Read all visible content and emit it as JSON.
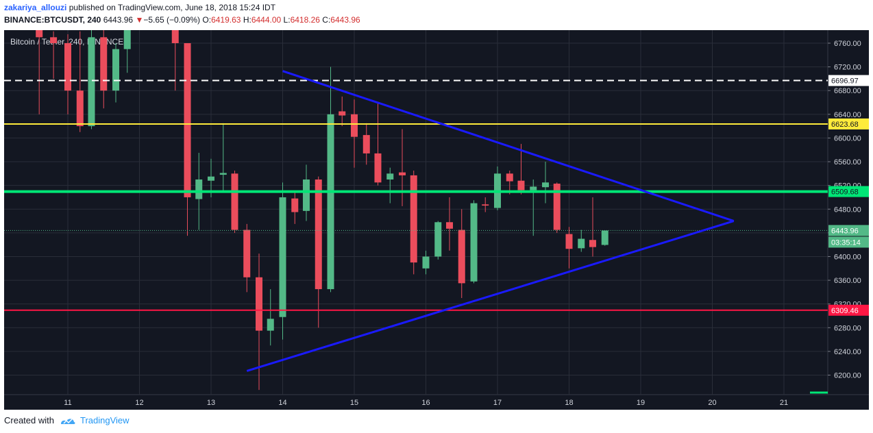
{
  "header": {
    "username": "zakariya_allouzi",
    "published_text": "published on TradingView.com, June 18, 2018 15:24 IDT",
    "symbol_label": "BINANCE:BTCUSDT, 240",
    "last_price": "6443.96",
    "change_arrow": "▼",
    "change": "−5.65 (−0.09%)",
    "open_label": "O:",
    "open": "6419.63",
    "high_label": "H:",
    "high": "6444.00",
    "low_label": "L:",
    "low": "6418.26",
    "close_label": "C:",
    "close": "6443.96"
  },
  "footer": {
    "created_with": "Created with",
    "brand": "TradingView"
  },
  "chart_data": {
    "type": "candlestick",
    "title": "Bitcoin / Tether, 240, BINANCE",
    "x_tick_labels": [
      "11",
      "12",
      "13",
      "14",
      "15",
      "16",
      "17",
      "18",
      "19",
      "20",
      "21"
    ],
    "y_tick_labels": [
      "6760.00",
      "6720.00",
      "6680.00",
      "6640.00",
      "6600.00",
      "6560.00",
      "6520.00",
      "6480.00",
      "6440.00",
      "6400.00",
      "6360.00",
      "6320.00",
      "6280.00",
      "6240.00",
      "6200.00"
    ],
    "x_range_days": [
      10.0,
      21.8
    ],
    "ylim": [
      6170,
      6780
    ],
    "grid": true,
    "candles": [
      {
        "t": 10.6,
        "o": 6790,
        "h": 6800,
        "l": 6640,
        "c": 6770
      },
      {
        "t": 10.8,
        "o": 6770,
        "h": 6780,
        "l": 6700,
        "c": 6760
      },
      {
        "t": 11.0,
        "o": 6760,
        "h": 6775,
        "l": 6640,
        "c": 6680
      },
      {
        "t": 11.17,
        "o": 6680,
        "h": 6780,
        "l": 6610,
        "c": 6620
      },
      {
        "t": 11.33,
        "o": 6620,
        "h": 6790,
        "l": 6615,
        "c": 6770
      },
      {
        "t": 11.5,
        "o": 6770,
        "h": 6790,
        "l": 6650,
        "c": 6680
      },
      {
        "t": 11.67,
        "o": 6680,
        "h": 6760,
        "l": 6660,
        "c": 6750
      },
      {
        "t": 11.83,
        "o": 6750,
        "h": 6790,
        "l": 6710,
        "c": 6785
      },
      {
        "t": 12.5,
        "o": 6790,
        "h": 6800,
        "l": 6680,
        "c": 6760
      },
      {
        "t": 12.67,
        "o": 6760,
        "h": 6760,
        "l": 6435,
        "c": 6500
      },
      {
        "t": 12.83,
        "o": 6497,
        "h": 6575,
        "l": 6445,
        "c": 6530
      },
      {
        "t": 13.0,
        "o": 6528,
        "h": 6565,
        "l": 6500,
        "c": 6535
      },
      {
        "t": 13.17,
        "o": 6538,
        "h": 6625,
        "l": 6510,
        "c": 6541
      },
      {
        "t": 13.33,
        "o": 6540,
        "h": 6545,
        "l": 6440,
        "c": 6445
      },
      {
        "t": 13.5,
        "o": 6445,
        "h": 6455,
        "l": 6340,
        "c": 6365
      },
      {
        "t": 13.67,
        "o": 6365,
        "h": 6405,
        "l": 6175,
        "c": 6275
      },
      {
        "t": 13.83,
        "o": 6275,
        "h": 6345,
        "l": 6250,
        "c": 6295
      },
      {
        "t": 14.0,
        "o": 6298,
        "h": 6525,
        "l": 6260,
        "c": 6500
      },
      {
        "t": 14.17,
        "o": 6498,
        "h": 6510,
        "l": 6455,
        "c": 6475
      },
      {
        "t": 14.33,
        "o": 6477,
        "h": 6555,
        "l": 6460,
        "c": 6530
      },
      {
        "t": 14.5,
        "o": 6530,
        "h": 6535,
        "l": 6280,
        "c": 6345
      },
      {
        "t": 14.67,
        "o": 6345,
        "h": 6720,
        "l": 6340,
        "c": 6640
      },
      {
        "t": 14.83,
        "o": 6645,
        "h": 6670,
        "l": 6620,
        "c": 6638
      },
      {
        "t": 15.0,
        "o": 6640,
        "h": 6665,
        "l": 6550,
        "c": 6602
      },
      {
        "t": 15.17,
        "o": 6605,
        "h": 6625,
        "l": 6555,
        "c": 6574
      },
      {
        "t": 15.33,
        "o": 6574,
        "h": 6660,
        "l": 6520,
        "c": 6525
      },
      {
        "t": 15.5,
        "o": 6530,
        "h": 6550,
        "l": 6490,
        "c": 6540
      },
      {
        "t": 15.67,
        "o": 6542,
        "h": 6615,
        "l": 6485,
        "c": 6537
      },
      {
        "t": 15.83,
        "o": 6537,
        "h": 6545,
        "l": 6370,
        "c": 6390
      },
      {
        "t": 16.0,
        "o": 6380,
        "h": 6410,
        "l": 6370,
        "c": 6400
      },
      {
        "t": 16.17,
        "o": 6400,
        "h": 6460,
        "l": 6395,
        "c": 6458
      },
      {
        "t": 16.33,
        "o": 6458,
        "h": 6500,
        "l": 6410,
        "c": 6447
      },
      {
        "t": 16.5,
        "o": 6445,
        "h": 6480,
        "l": 6330,
        "c": 6355
      },
      {
        "t": 16.67,
        "o": 6358,
        "h": 6495,
        "l": 6355,
        "c": 6490
      },
      {
        "t": 16.83,
        "o": 6488,
        "h": 6500,
        "l": 6475,
        "c": 6486
      },
      {
        "t": 17.0,
        "o": 6482,
        "h": 6552,
        "l": 6478,
        "c": 6540
      },
      {
        "t": 17.17,
        "o": 6540,
        "h": 6545,
        "l": 6505,
        "c": 6527
      },
      {
        "t": 17.33,
        "o": 6528,
        "h": 6590,
        "l": 6505,
        "c": 6512
      },
      {
        "t": 17.5,
        "o": 6512,
        "h": 6530,
        "l": 6435,
        "c": 6518
      },
      {
        "t": 17.67,
        "o": 6517,
        "h": 6560,
        "l": 6490,
        "c": 6525
      },
      {
        "t": 17.83,
        "o": 6523,
        "h": 6525,
        "l": 6440,
        "c": 6445
      },
      {
        "t": 18.0,
        "o": 6438,
        "h": 6450,
        "l": 6380,
        "c": 6413
      },
      {
        "t": 18.17,
        "o": 6414,
        "h": 6445,
        "l": 6408,
        "c": 6430
      },
      {
        "t": 18.33,
        "o": 6428,
        "h": 6500,
        "l": 6400,
        "c": 6416
      },
      {
        "t": 18.5,
        "o": 6419.63,
        "h": 6444.0,
        "l": 6418.26,
        "c": 6443.96
      }
    ],
    "horizontal_levels": [
      {
        "price": 6696.97,
        "label": "6696.97",
        "color": "#ffffff",
        "style": "dashed"
      },
      {
        "price": 6623.68,
        "label": "6623.68",
        "color": "#ffeb3b",
        "style": "solid"
      },
      {
        "price": 6509.68,
        "label": "6509.68",
        "color": "#00e676",
        "style": "solid"
      },
      {
        "price": 6309.46,
        "label": "6309.46",
        "color": "#ff1744",
        "style": "solid"
      }
    ],
    "last_price_label": "6443.96",
    "countdown_label": "03:35:14",
    "trendlines": [
      {
        "from": {
          "t": 14.0,
          "p": 6713
        },
        "to": {
          "t": 20.3,
          "p": 6460
        },
        "color": "#1a1aff"
      },
      {
        "from": {
          "t": 13.5,
          "p": 6207
        },
        "to": {
          "t": 20.3,
          "p": 6460
        },
        "color": "#1a1aff"
      }
    ],
    "colors": {
      "background": "#131722",
      "up": "#53b987",
      "down": "#eb4d5c",
      "grid": "#2a2e39",
      "axis_text": "#d1d4dc"
    }
  }
}
